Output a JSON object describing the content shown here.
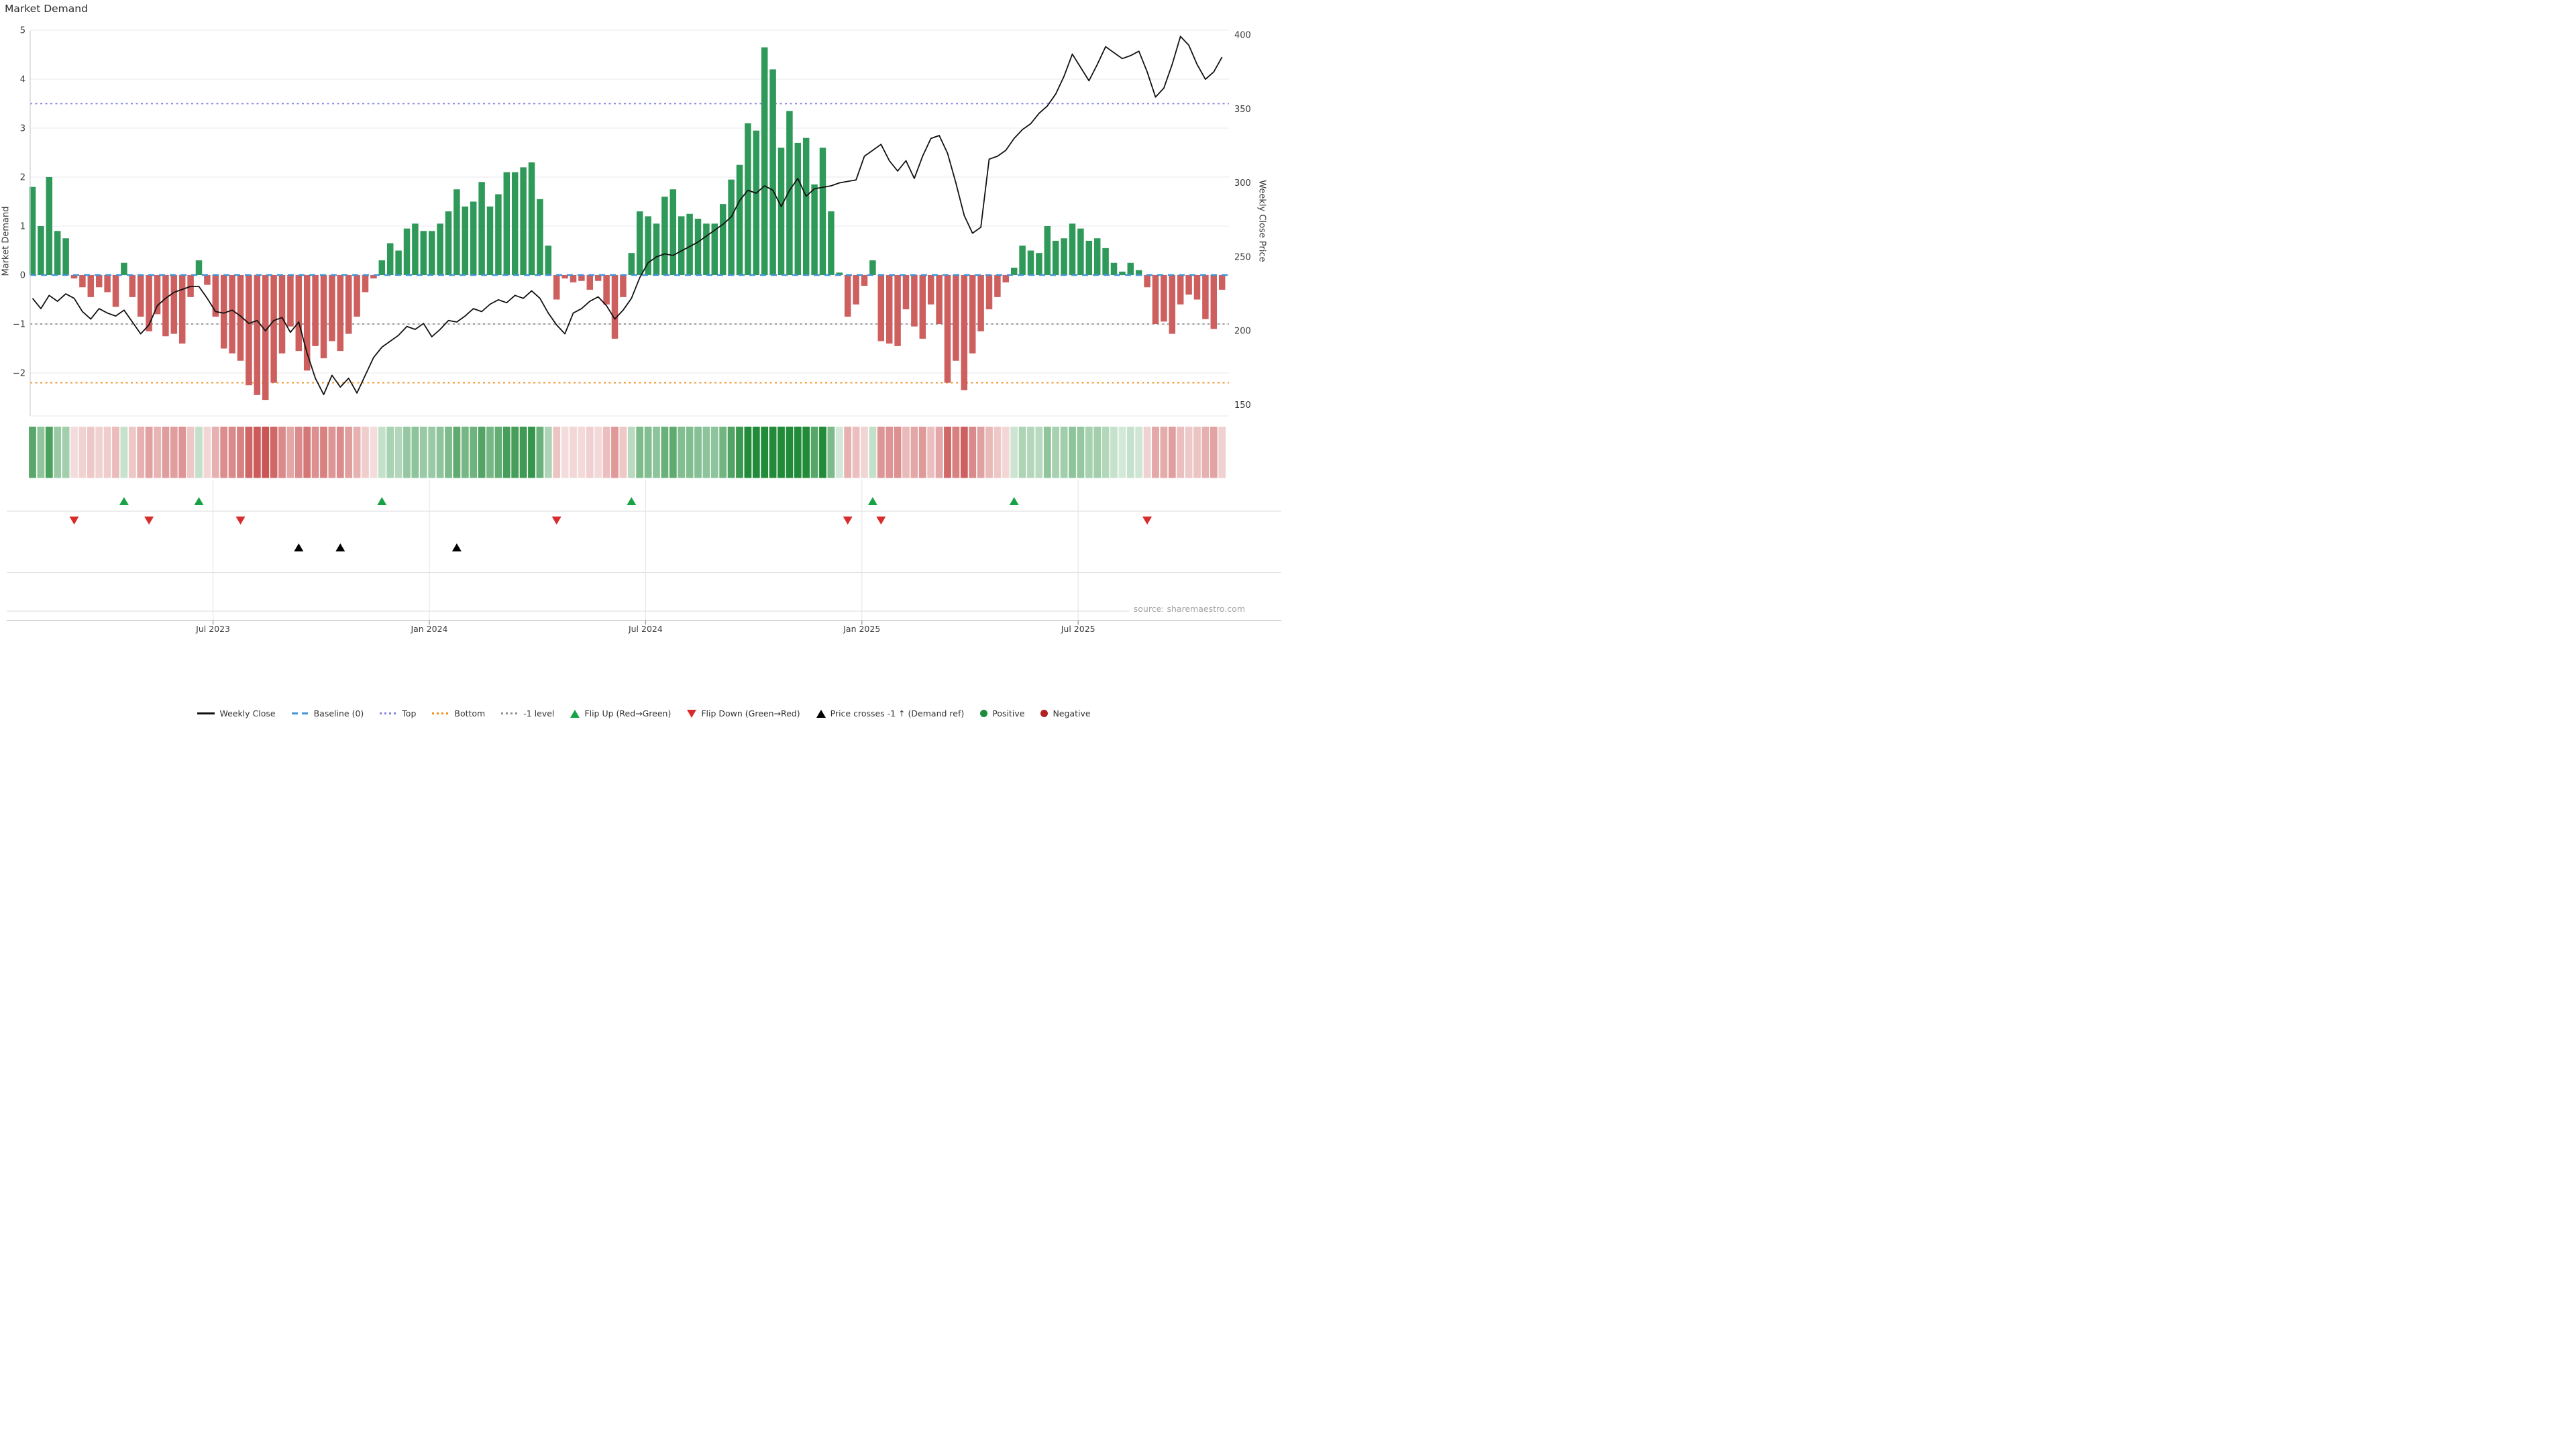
{
  "title": "Market Demand",
  "source_note": "source: sharemaestro.com",
  "colors": {
    "bar_positive": "#2e9958",
    "bar_negative": "#cd5f5f",
    "price_line": "#111111",
    "baseline": "#4393d6",
    "top_line": "#8181e0",
    "bottom_line": "#f08c1a",
    "minus1_line": "#8c8c8c",
    "flip_up": "#17a245",
    "flip_down": "#d92b2b",
    "price_cross": "#000000",
    "grid": "#ededf2",
    "spine": "#cfcfcf"
  },
  "chart_data": {
    "type": "bar+line",
    "title": "Market Demand",
    "ylabel_left": "Market Demand",
    "ylabel_right": "Weekly Close Price",
    "y_left_ticks": [
      5,
      4,
      3,
      2,
      1,
      0,
      -1,
      -2
    ],
    "y_left_range": [
      -2.6,
      5
    ],
    "y_right_ticks": [
      400,
      350,
      300,
      250,
      200,
      150
    ],
    "y_right_range": [
      140,
      412
    ],
    "x_tick_labels": [
      "Jul 2023",
      "Jan 2024",
      "Jul 2024",
      "Jan 2025",
      "Jul 2025"
    ],
    "x_tick_weeks": [
      22.7,
      48.7,
      74.7,
      100.7,
      126.7
    ],
    "weeks": 144,
    "grid": true,
    "legend_position": "bottom",
    "reference_lines": {
      "baseline": 0,
      "top": 3.5,
      "bottom": -2.2,
      "minus1_level": -1
    },
    "series": [
      {
        "name": "Market Demand (weekly bars)",
        "axis": "left",
        "values": [
          1.8,
          1.0,
          2.0,
          0.9,
          0.75,
          -0.07,
          -0.25,
          -0.45,
          -0.25,
          -0.35,
          -0.65,
          0.25,
          -0.45,
          -0.85,
          -1.15,
          -0.8,
          -1.25,
          -1.2,
          -1.4,
          -0.45,
          0.3,
          -0.2,
          -0.85,
          -1.5,
          -1.6,
          -1.75,
          -2.25,
          -2.45,
          -2.55,
          -2.2,
          -1.6,
          -1.05,
          -1.55,
          -1.95,
          -1.45,
          -1.7,
          -1.35,
          -1.55,
          -1.2,
          -0.85,
          -0.35,
          -0.07,
          0.3,
          0.65,
          0.5,
          0.95,
          1.05,
          0.9,
          0.9,
          1.05,
          1.3,
          1.75,
          1.4,
          1.5,
          1.9,
          1.4,
          1.65,
          2.1,
          2.1,
          2.2,
          2.3,
          1.55,
          0.6,
          -0.5,
          -0.07,
          -0.15,
          -0.12,
          -0.3,
          -0.12,
          -0.6,
          -1.3,
          -0.45,
          0.45,
          1.3,
          1.2,
          1.05,
          1.6,
          1.75,
          1.2,
          1.25,
          1.15,
          1.05,
          1.05,
          1.45,
          1.95,
          2.25,
          3.1,
          2.95,
          4.65,
          4.2,
          2.6,
          3.35,
          2.7,
          2.8,
          1.85,
          2.6,
          1.3,
          0.05,
          -0.85,
          -0.6,
          -0.22,
          0.3,
          -1.35,
          -1.4,
          -1.45,
          -0.7,
          -1.05,
          -1.3,
          -0.6,
          -1.0,
          -2.2,
          -1.75,
          -2.35,
          -1.6,
          -1.15,
          -0.7,
          -0.45,
          -0.15,
          0.15,
          0.6,
          0.5,
          0.45,
          1.0,
          0.7,
          0.75,
          1.05,
          0.95,
          0.7,
          0.75,
          0.55,
          0.25,
          0.07,
          0.25,
          0.1,
          -0.25,
          -1.0,
          -0.95,
          -1.2,
          -0.6,
          -0.4,
          -0.5,
          -0.9,
          -1.1,
          -0.3
        ]
      },
      {
        "name": "Weekly Close",
        "axis": "right",
        "values": [
          222,
          215,
          224,
          220,
          225,
          222,
          213,
          208,
          215,
          212,
          210,
          214,
          206,
          198,
          204,
          217,
          222,
          226,
          228,
          230,
          230,
          222,
          213,
          212,
          214,
          210,
          205,
          207,
          200,
          207,
          209,
          199,
          206,
          185,
          168,
          157,
          170,
          162,
          168,
          158,
          170,
          182,
          189,
          193,
          197,
          203,
          201,
          205,
          196,
          201,
          207,
          206,
          210,
          215,
          213,
          218,
          221,
          219,
          224,
          222,
          227,
          222,
          212,
          204,
          198,
          212,
          215,
          220,
          223,
          217,
          208,
          214,
          222,
          236,
          246,
          250,
          252,
          251,
          254,
          257,
          260,
          264,
          268,
          272,
          277,
          288,
          295,
          293,
          298,
          295,
          284,
          295,
          303,
          291,
          296,
          297,
          298,
          300,
          301,
          302,
          318,
          322,
          326,
          315,
          308,
          315,
          303,
          318,
          330,
          332,
          320,
          300,
          278,
          266,
          270,
          316,
          318,
          322,
          330,
          336,
          340,
          347,
          352,
          360,
          372,
          387,
          378,
          369,
          380,
          392,
          388,
          384,
          386,
          389,
          375,
          358,
          364,
          380,
          399,
          393,
          380,
          370,
          375,
          385
        ]
      }
    ],
    "markers": {
      "flip_up_weeks": [
        12,
        21,
        43,
        73,
        102,
        119
      ],
      "flip_down_weeks": [
        6,
        15,
        26,
        64,
        99,
        103,
        135
      ],
      "price_cross_weeks": [
        33,
        38,
        52
      ]
    },
    "heatmap": {
      "description": "weekly demand sign/intensity strip",
      "mirrors": "series[0]"
    }
  },
  "legend": [
    {
      "type": "line",
      "color": "#111111",
      "label": "Weekly Close"
    },
    {
      "type": "dash",
      "color": "#4393d6",
      "label": "Baseline (0)"
    },
    {
      "type": "dot",
      "color": "#8181e0",
      "label": "Top"
    },
    {
      "type": "dot",
      "color": "#f08c1a",
      "label": "Bottom"
    },
    {
      "type": "dot",
      "color": "#8c8c8c",
      "label": "-1 level"
    },
    {
      "type": "tri-up",
      "color": "#17a245",
      "label": "Flip Up (Red→Green)"
    },
    {
      "type": "tri-down",
      "color": "#d92b2b",
      "label": "Flip Down (Green→Red)"
    },
    {
      "type": "tri-up",
      "color": "#000000",
      "label": "Price crosses -1 ↑ (Demand ref)"
    },
    {
      "type": "circle",
      "color": "#1e8c3c",
      "label": "Positive"
    },
    {
      "type": "circle",
      "color": "#b22222",
      "label": "Negative"
    }
  ]
}
